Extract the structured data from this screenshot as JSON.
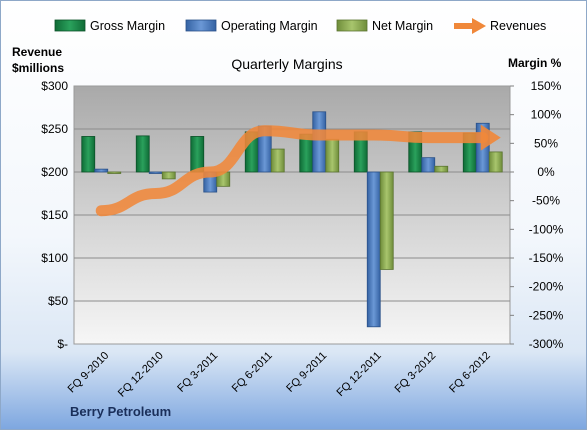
{
  "chart_data": {
    "type": "bar",
    "title": "Quarterly Margins",
    "footer": "Berry Petroleum",
    "y_left_label_line1": "Revenue",
    "y_left_label_line2": "$millions",
    "y_right_label": "Margin %",
    "categories": [
      "FQ 9-2010",
      "FQ 12-2010",
      "FQ 3-2011",
      "FQ 6-2011",
      "FQ 9-2011",
      "FQ 12-2011",
      "FQ 3-2012",
      "FQ 6-2012"
    ],
    "series": [
      {
        "name": "Gross Margin",
        "axis": "right",
        "type": "bar",
        "color": "#1f8a4c",
        "values": [
          62,
          63,
          62,
          70,
          66,
          70,
          70,
          68
        ]
      },
      {
        "name": "Operating Margin",
        "axis": "right",
        "type": "bar",
        "color": "#4f7fc0",
        "values": [
          5,
          0,
          -35,
          80,
          105,
          -270,
          25,
          85
        ]
      },
      {
        "name": "Net Margin",
        "axis": "right",
        "type": "bar",
        "color": "#8fb055",
        "values": [
          0,
          -12,
          -25,
          40,
          57,
          -170,
          10,
          35
        ]
      },
      {
        "name": "Revenues",
        "axis": "left",
        "type": "line",
        "color": "#f0883a",
        "values": [
          155,
          175,
          200,
          248,
          243,
          243,
          240,
          240
        ]
      }
    ],
    "y_left": {
      "min": 0,
      "max": 300,
      "step": 50,
      "tick_labels": [
        "$-",
        "$50",
        "$100",
        "$150",
        "$200",
        "$250",
        "$300"
      ]
    },
    "y_right": {
      "min": -300,
      "max": 150,
      "step": 50,
      "tick_labels": [
        "-300%",
        "-250%",
        "-200%",
        "-150%",
        "-100%",
        "-50%",
        "0%",
        "50%",
        "100%",
        "150%"
      ]
    },
    "grid": true,
    "legend_placement": "top"
  }
}
